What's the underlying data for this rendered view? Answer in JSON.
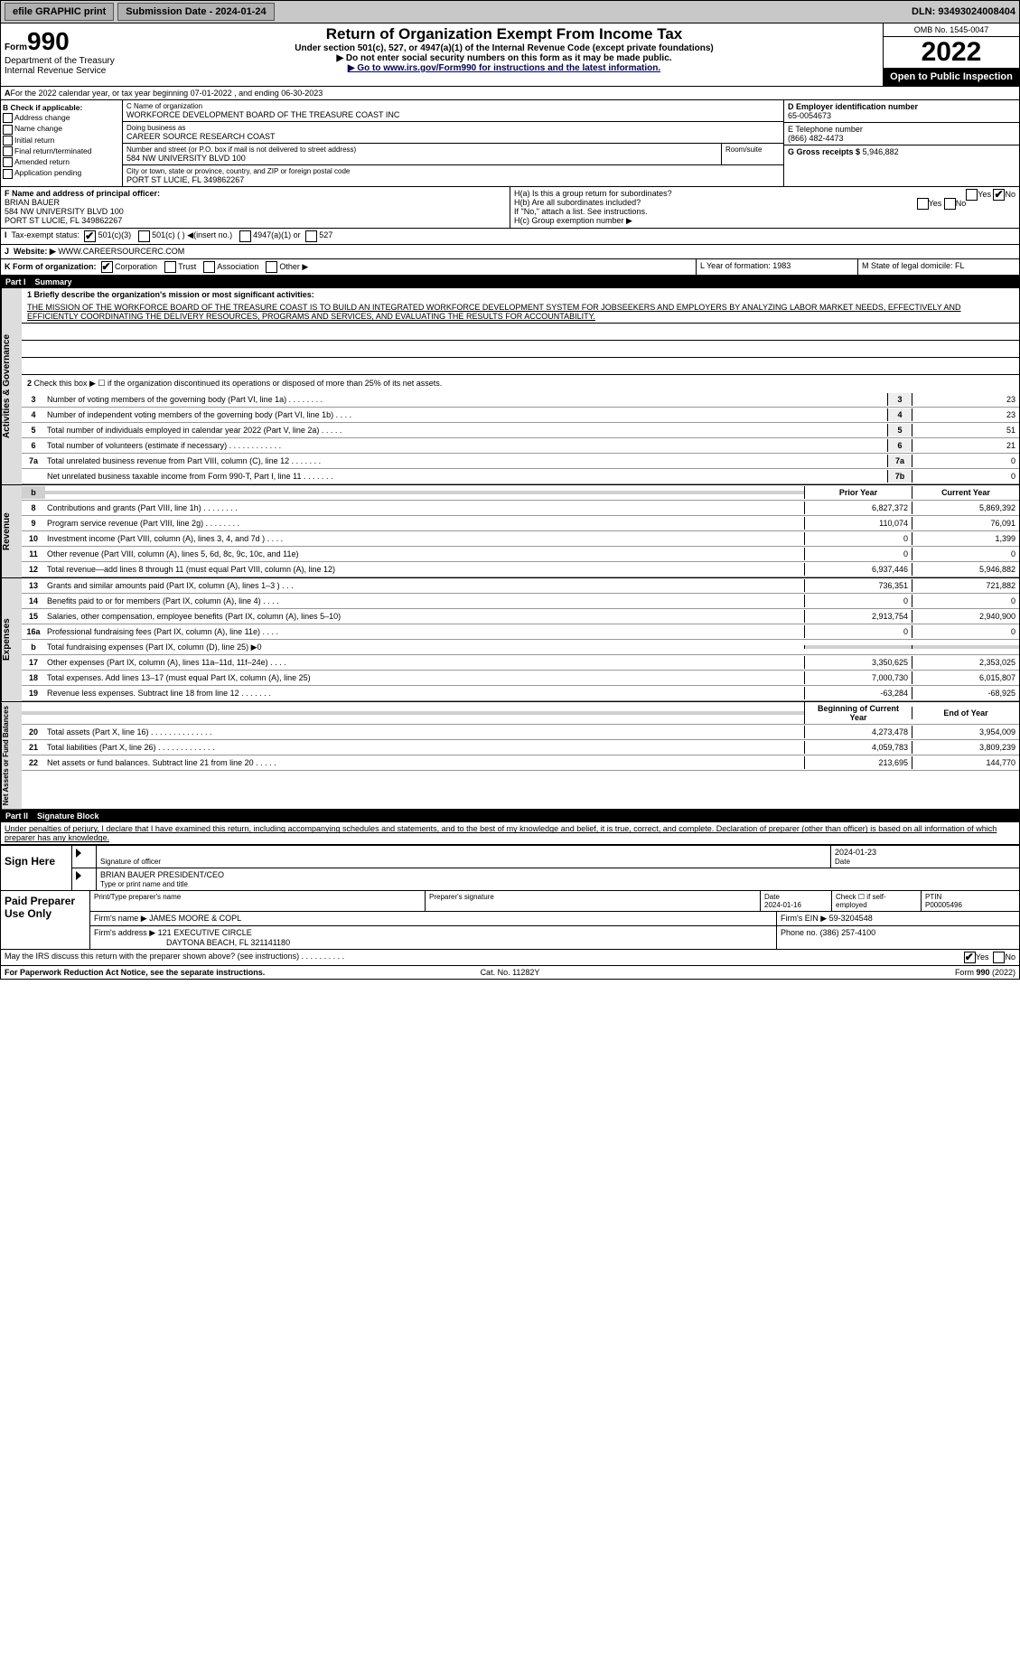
{
  "top": {
    "efile": "efile GRAPHIC print",
    "submit_lbl": "Submission Date - 2024-01-24",
    "dln": "DLN: 93493024008404"
  },
  "hdr": {
    "form": "990",
    "form_prefix": "Form",
    "title": "Return of Organization Exempt From Income Tax",
    "sub1": "Under section 501(c), 527, or 4947(a)(1) of the Internal Revenue Code (except private foundations)",
    "sub2": "▶ Do not enter social security numbers on this form as it may be made public.",
    "sub3": "▶ Go to www.irs.gov/Form990 for instructions and the latest information.",
    "dept": "Department of the Treasury",
    "irs": "Internal Revenue Service",
    "omb": "OMB No. 1545-0047",
    "year": "2022",
    "open": "Open to Public Inspection"
  },
  "A": {
    "txt": "For the 2022 calendar year, or tax year beginning 07-01-2022   , and ending 06-30-2023"
  },
  "B": {
    "lbl": "B Check if applicable:",
    "opts": [
      "Address change",
      "Name change",
      "Initial return",
      "Final return/terminated",
      "Amended return",
      "Application pending"
    ]
  },
  "C": {
    "name_lbl": "C Name of organization",
    "name": "WORKFORCE DEVELOPMENT BOARD OF THE TREASURE COAST INC",
    "dba_lbl": "Doing business as",
    "dba": "CAREER SOURCE RESEARCH COAST",
    "addr_lbl": "Number and street (or P.O. box if mail is not delivered to street address)",
    "room": "Room/suite",
    "addr": "584 NW UNIVERSITY BLVD 100",
    "city_lbl": "City or town, state or province, country, and ZIP or foreign postal code",
    "city": "PORT ST LUCIE, FL  349862267"
  },
  "D": {
    "lbl": "D Employer identification number",
    "val": "65-0054673"
  },
  "E": {
    "lbl": "E Telephone number",
    "val": "(866) 482-4473"
  },
  "G": {
    "lbl": "G Gross receipts $",
    "val": "5,946,882"
  },
  "F": {
    "lbl": "F  Name and address of principal officer:",
    "name": "BRIAN BAUER",
    "addr1": "584 NW UNIVERSITY BLVD 100",
    "addr2": "PORT ST LUCIE, FL  349862267"
  },
  "H": {
    "a": "H(a)  Is this a group return for subordinates?",
    "b": "H(b)  Are all subordinates included?",
    "note": "If \"No,\" attach a list. See instructions.",
    "c": "H(c)  Group exemption number ▶",
    "yes": "Yes",
    "no": "No"
  },
  "I": {
    "lbl": "Tax-exempt status:",
    "opts": [
      "501(c)(3)",
      "501(c) (  ) ◀(insert no.)",
      "4947(a)(1) or",
      "527"
    ]
  },
  "J": {
    "lbl": "Website: ▶",
    "val": "WWW.CAREERSOURCERC.COM"
  },
  "K": {
    "lbl": "K Form of organization:",
    "opts": [
      "Corporation",
      "Trust",
      "Association",
      "Other ▶"
    ]
  },
  "L": {
    "lbl": "L Year of formation: 1983"
  },
  "M": {
    "lbl": "M State of legal domicile: FL"
  },
  "p1": {
    "title": "Part I",
    "name": "Summary"
  },
  "gov": {
    "tab": "Activities & Governance",
    "l1": "1 Briefly describe the organization's mission or most significant activities:",
    "mission": "THE MISSION OF THE WORKFORCE BOARD OF THE TREASURE COAST IS TO BUILD AN INTEGRATED WORKFORCE DEVELOPMENT SYSTEM FOR JOBSEEKERS AND EMPLOYERS BY ANALYZING LABOR MARKET NEEDS, EFFECTIVELY AND EFFICIENTLY COORDINATING THE DELIVERY RESOURCES, PROGRAMS AND SERVICES, AND EVALUATING THE RESULTS FOR ACCOUNTABILITY.",
    "l2": "Check this box ▶ ☐  if the organization discontinued its operations or disposed of more than 25% of its net assets.",
    "rows": [
      {
        "n": "3",
        "t": "Number of voting members of the governing body (Part VI, line 1a)   .    .    .    .    .    .    .    .",
        "sn": "3",
        "v": "23"
      },
      {
        "n": "4",
        "t": "Number of independent voting members of the governing body (Part VI, line 1b)   .    .    .    .",
        "sn": "4",
        "v": "23"
      },
      {
        "n": "5",
        "t": "Total number of individuals employed in calendar year 2022 (Part V, line 2a)   .    .    .    .    .",
        "sn": "5",
        "v": "51"
      },
      {
        "n": "6",
        "t": "Total number of volunteers (estimate if necessary)   .    .    .    .    .    .    .    .    .    .    .    .",
        "sn": "6",
        "v": "21"
      },
      {
        "n": "7a",
        "t": "Total unrelated business revenue from Part VIII, column (C), line 12   .    .    .    .    .    .    .",
        "sn": "7a",
        "v": "0"
      },
      {
        "n": "",
        "t": "Net unrelated business taxable income from Form 990-T, Part I, line 11   .    .    .    .    .    .    .",
        "sn": "7b",
        "v": "0"
      }
    ]
  },
  "rev": {
    "tab": "Revenue",
    "h1": "Prior Year",
    "h2": "Current Year",
    "rows": [
      {
        "n": "8",
        "t": "Contributions and grants (Part VIII, line 1h)   .    .    .    .    .    .    .    .",
        "p": "6,827,372",
        "c": "5,869,392"
      },
      {
        "n": "9",
        "t": "Program service revenue (Part VIII, line 2g)   .    .    .    .    .    .    .    .",
        "p": "110,074",
        "c": "76,091"
      },
      {
        "n": "10",
        "t": "Investment income (Part VIII, column (A), lines 3, 4, and 7d )   .    .    .    .",
        "p": "0",
        "c": "1,399"
      },
      {
        "n": "11",
        "t": "Other revenue (Part VIII, column (A), lines 5, 6d, 8c, 9c, 10c, and 11e)",
        "p": "0",
        "c": "0"
      },
      {
        "n": "12",
        "t": "Total revenue—add lines 8 through 11 (must equal Part VIII, column (A), line 12)",
        "p": "6,937,446",
        "c": "5,946,882"
      }
    ]
  },
  "exp": {
    "tab": "Expenses",
    "rows": [
      {
        "n": "13",
        "t": "Grants and similar amounts paid (Part IX, column (A), lines 1–3 )   .    .    .",
        "p": "736,351",
        "c": "721,882"
      },
      {
        "n": "14",
        "t": "Benefits paid to or for members (Part IX, column (A), line 4)   .    .    .    .",
        "p": "0",
        "c": "0"
      },
      {
        "n": "15",
        "t": "Salaries, other compensation, employee benefits (Part IX, column (A), lines 5–10)",
        "p": "2,913,754",
        "c": "2,940,900"
      },
      {
        "n": "16a",
        "t": "Professional fundraising fees (Part IX, column (A), line 11e)   .    .    .    .",
        "p": "0",
        "c": "0"
      },
      {
        "n": "b",
        "t": "Total fundraising expenses (Part IX, column (D), line 25) ▶0",
        "p": "",
        "c": "",
        "shade": true
      },
      {
        "n": "17",
        "t": "Other expenses (Part IX, column (A), lines 11a–11d, 11f–24e)   .    .    .    .",
        "p": "3,350,625",
        "c": "2,353,025"
      },
      {
        "n": "18",
        "t": "Total expenses. Add lines 13–17 (must equal Part IX, column (A), line 25)",
        "p": "7,000,730",
        "c": "6,015,807"
      },
      {
        "n": "19",
        "t": "Revenue less expenses. Subtract line 18 from line 12   .    .    .    .    .    .    .",
        "p": "-63,284",
        "c": "-68,925"
      }
    ]
  },
  "net": {
    "tab": "Net Assets or Fund Balances",
    "h1": "Beginning of Current Year",
    "h2": "End of Year",
    "rows": [
      {
        "n": "20",
        "t": "Total assets (Part X, line 16)   .    .    .    .    .    .    .    .    .    .    .    .    .    .",
        "p": "4,273,478",
        "c": "3,954,009"
      },
      {
        "n": "21",
        "t": "Total liabilities (Part X, line 26)   .    .    .    .    .    .    .    .    .    .    .    .    .",
        "p": "4,059,783",
        "c": "3,809,239"
      },
      {
        "n": "22",
        "t": "Net assets or fund balances. Subtract line 21 from line 20   .    .    .    .    .",
        "p": "213,695",
        "c": "144,770"
      }
    ]
  },
  "p2": {
    "title": "Part II",
    "name": "Signature Block",
    "decl": "Under penalties of perjury, I declare that I have examined this return, including accompanying schedules and statements, and to the best of my knowledge and belief, it is true, correct, and complete. Declaration of preparer (other than officer) is based on all information of which preparer has any knowledge."
  },
  "sign": {
    "here": "Sign Here",
    "sig_lbl": "Signature of officer",
    "date_lbl": "Date",
    "date": "2024-01-23",
    "name": "BRIAN BAUER  PRESIDENT/CEO",
    "name_lbl": "Type or print name and title"
  },
  "prep": {
    "lbl": "Paid Preparer Use Only",
    "h": [
      "Print/Type preparer's name",
      "Preparer's signature",
      "Date",
      "Check ☐ if self-employed",
      "PTIN"
    ],
    "date": "2024-01-16",
    "ptin": "P00005496",
    "firm_lbl": "Firm's name   ▶",
    "firm": "JAMES MOORE & COPL",
    "ein_lbl": "Firm's EIN ▶",
    "ein": "59-3204548",
    "addr_lbl": "Firm's address ▶",
    "addr": "121 EXECUTIVE CIRCLE",
    "city": "DAYTONA BEACH, FL  321141180",
    "ph_lbl": "Phone no.",
    "ph": "(386) 257-4100"
  },
  "discuss": {
    "t": "May the IRS discuss this return with the preparer shown above? (see instructions)   .    .    .    .    .    .    .    .    .    .",
    "yes": "Yes",
    "no": "No"
  },
  "foot": {
    "l": "For Paperwork Reduction Act Notice, see the separate instructions.",
    "c": "Cat. No. 11282Y",
    "r": "Form 990 (2022)"
  }
}
